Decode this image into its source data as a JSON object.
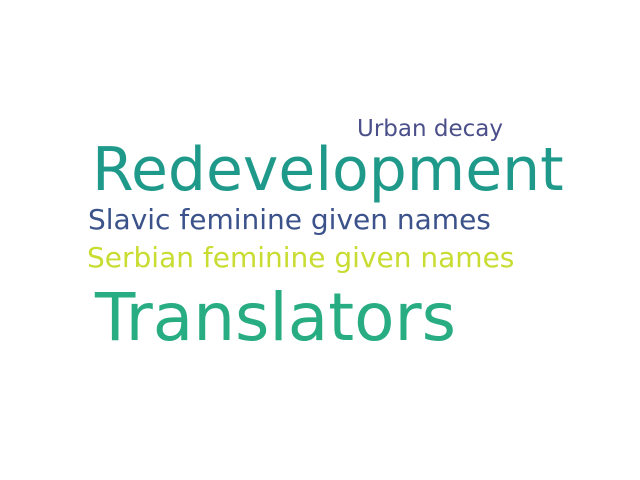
{
  "word_cloud": {
    "words": [
      {
        "text": "Urban decay",
        "color": "#4b4f8a"
      },
      {
        "text": "Redevelopment",
        "color": "#1f9a8a"
      },
      {
        "text": "Slavic feminine given names",
        "color": "#3b528b"
      },
      {
        "text": "Serbian feminine given names",
        "color": "#c8dc32"
      },
      {
        "text": "Translators",
        "color": "#27ad81"
      }
    ]
  }
}
